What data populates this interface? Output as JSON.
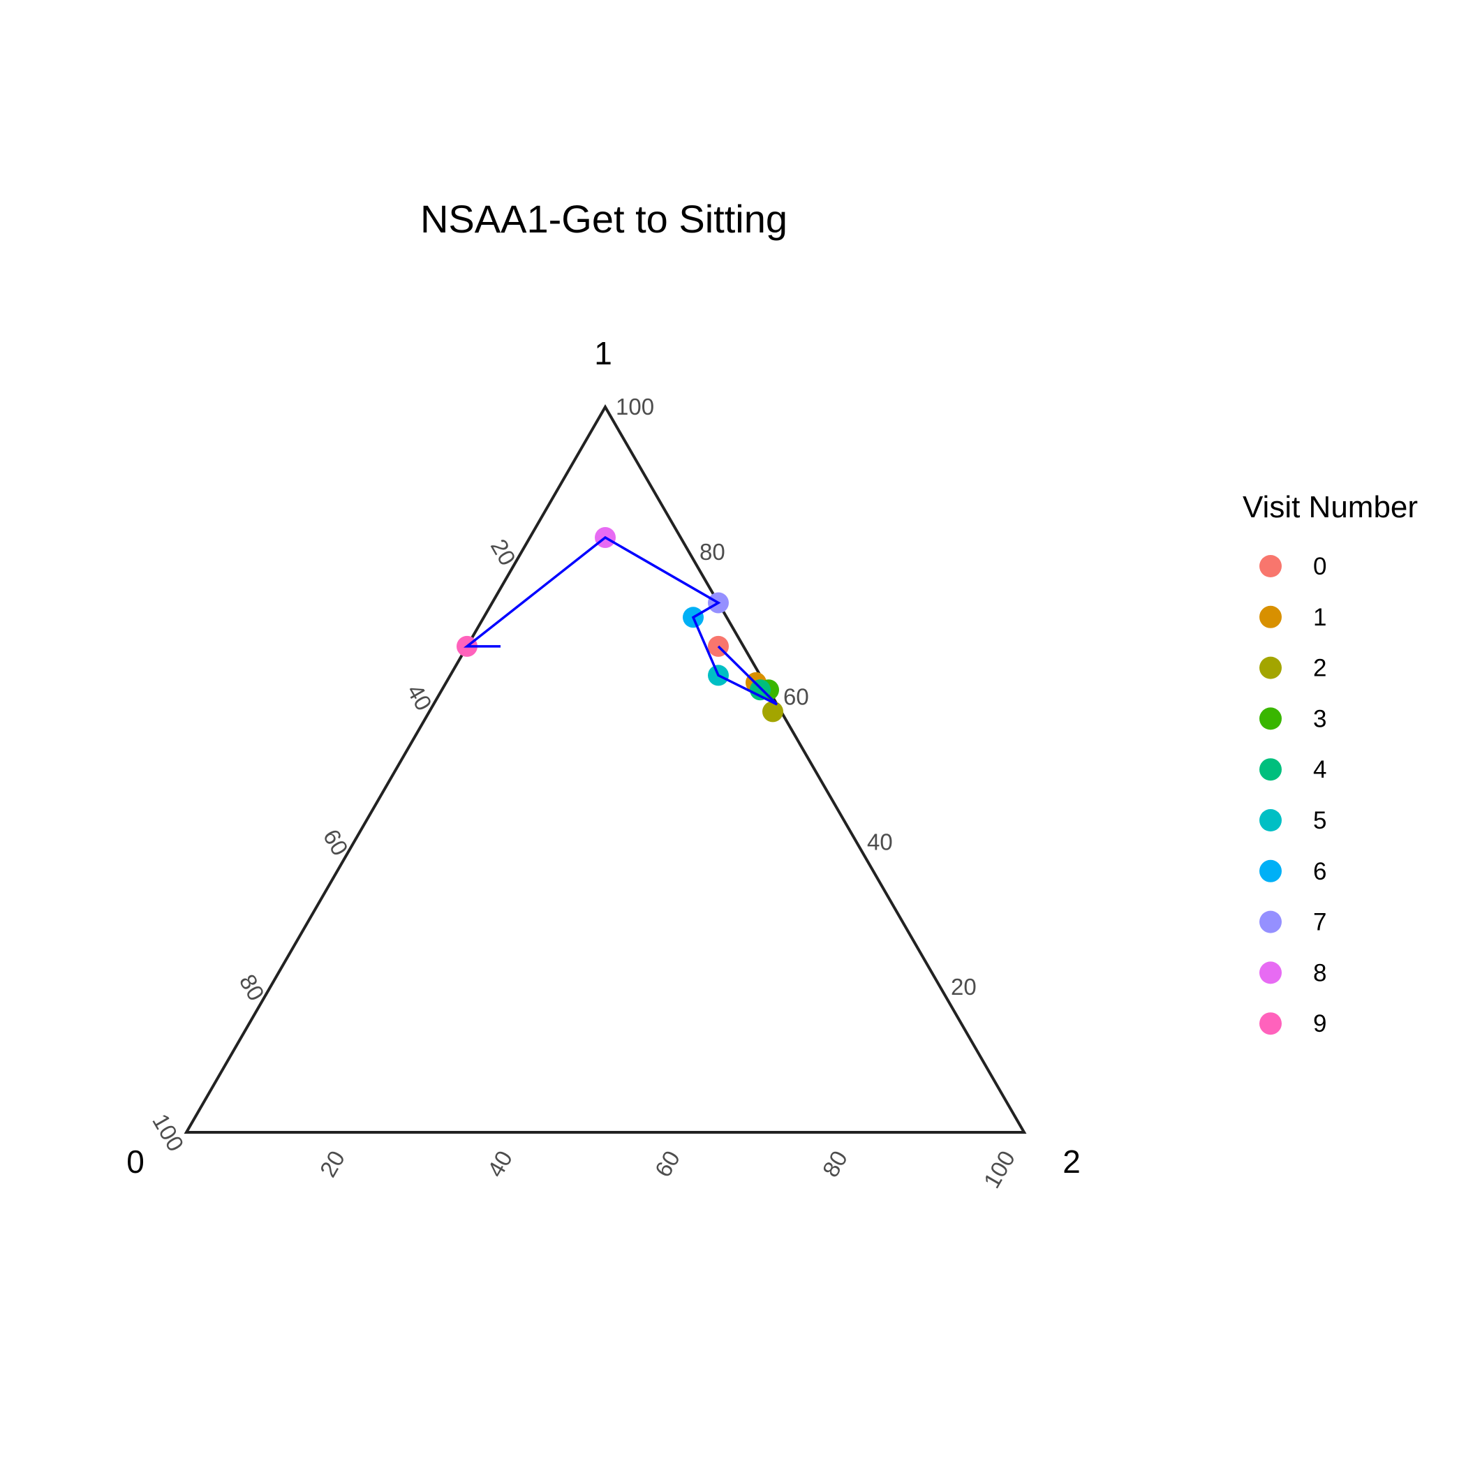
{
  "chart_data": {
    "type": "ternary",
    "title": "NSAA1-Get to Sitting",
    "axes": {
      "left": "0",
      "top": "1",
      "right": "2"
    },
    "ticks": [
      20,
      40,
      60,
      80,
      100
    ],
    "grid": false,
    "legend": {
      "title": "Visit Number",
      "placement": "right",
      "entries": [
        {
          "label": "0",
          "color": "#F8766D"
        },
        {
          "label": "1",
          "color": "#D89000"
        },
        {
          "label": "2",
          "color": "#A3A500"
        },
        {
          "label": "3",
          "color": "#39B600"
        },
        {
          "label": "4",
          "color": "#00BF7D"
        },
        {
          "label": "5",
          "color": "#00BFC4"
        },
        {
          "label": "6",
          "color": "#00B0F6"
        },
        {
          "label": "7",
          "color": "#9590FF"
        },
        {
          "label": "8",
          "color": "#E76BF3"
        },
        {
          "label": "9",
          "color": "#FF62BC"
        }
      ]
    },
    "points": [
      {
        "visit": "0",
        "c0": 3,
        "c1": 67,
        "c2": 30
      },
      {
        "visit": "1",
        "c0": 1,
        "c1": 62,
        "c2": 37
      },
      {
        "visit": "2",
        "c0": 1,
        "c1": 58,
        "c2": 41
      },
      {
        "visit": "3",
        "c0": 0,
        "c1": 61,
        "c2": 39
      },
      {
        "visit": "4",
        "c0": 1,
        "c1": 61,
        "c2": 38
      },
      {
        "visit": "5",
        "c0": 5,
        "c1": 63,
        "c2": 32
      },
      {
        "visit": "6",
        "c0": 4,
        "c1": 71,
        "c2": 25
      },
      {
        "visit": "7",
        "c0": 0,
        "c1": 73,
        "c2": 27
      },
      {
        "visit": "8",
        "c0": 9,
        "c1": 82,
        "c2": 9
      },
      {
        "visit": "9",
        "c0": 33,
        "c1": 67,
        "c2": 0
      }
    ],
    "path": {
      "color": "#0000FF",
      "points": [
        {
          "c0": 3,
          "c1": 67,
          "c2": 30
        },
        {
          "c0": 0,
          "c1": 59,
          "c2": 41
        },
        {
          "c0": 5,
          "c1": 63,
          "c2": 32
        },
        {
          "c0": 4,
          "c1": 71,
          "c2": 25
        },
        {
          "c0": 0,
          "c1": 73,
          "c2": 27
        },
        {
          "c0": 9,
          "c1": 82,
          "c2": 9
        },
        {
          "c0": 33,
          "c1": 67,
          "c2": 0
        },
        {
          "c0": 29,
          "c1": 67,
          "c2": 4
        }
      ]
    },
    "axis_color": "#222222"
  }
}
